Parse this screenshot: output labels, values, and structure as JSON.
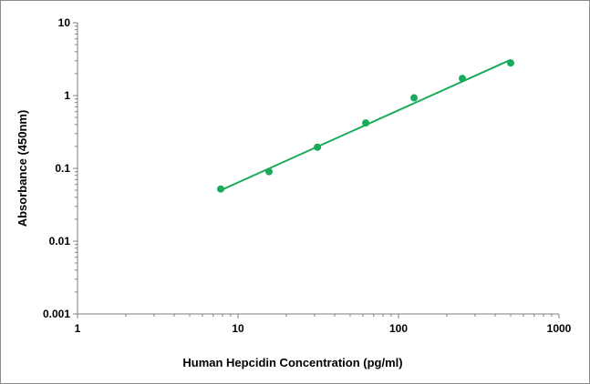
{
  "chart_data": {
    "type": "scatter",
    "title": "",
    "xlabel": "Human Hepcidin Concentration (pg/ml)",
    "ylabel": "Absorbance (450nm)",
    "x_scale": "log",
    "y_scale": "log",
    "xlim": [
      1,
      1000
    ],
    "ylim": [
      0.001,
      10
    ],
    "x_tick_labels": [
      "1",
      "10",
      "100",
      "1000"
    ],
    "y_tick_labels": [
      "0.001",
      "0.01",
      "0.1",
      "1",
      "10"
    ],
    "grid": false,
    "legend": "none",
    "series": [
      {
        "x": [
          7.8,
          15.6,
          31.25,
          62.5,
          125,
          250,
          500
        ],
        "y": [
          0.052,
          0.09,
          0.195,
          0.42,
          0.93,
          1.72,
          2.8
        ],
        "marker_color": "#1aab5a"
      }
    ],
    "fit_line": {
      "x": [
        7.8,
        500
      ],
      "y": [
        0.05,
        3.1
      ],
      "color": "#1aab5a"
    }
  }
}
